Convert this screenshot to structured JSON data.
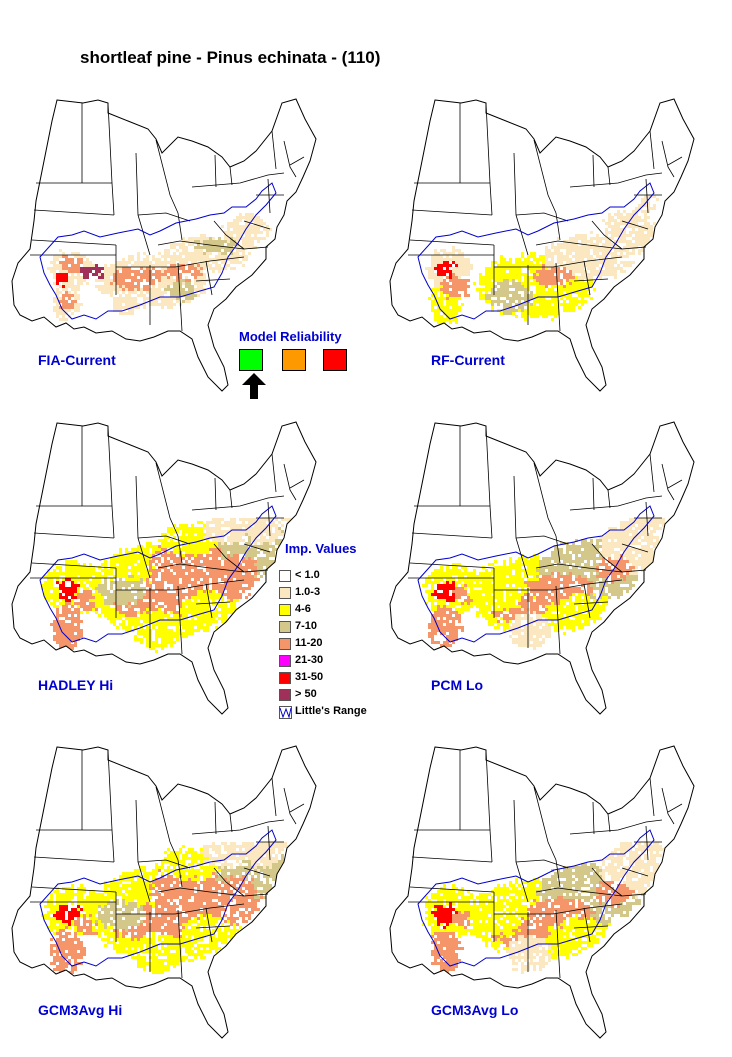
{
  "title": "shortleaf pine - Pinus echinata - (110)",
  "panels": [
    {
      "label": "FIA-Current",
      "intensity": 0
    },
    {
      "label": "RF-Current",
      "intensity": 1
    },
    {
      "label": "HADLEY Hi",
      "intensity": 3
    },
    {
      "label": "PCM Lo",
      "intensity": 2
    },
    {
      "label": "GCM3Avg Hi",
      "intensity": 3
    },
    {
      "label": "GCM3Avg Lo",
      "intensity": 2
    }
  ],
  "model_reliability": {
    "title": "Model Reliability",
    "levels": [
      {
        "color": "#00ff00",
        "selected": true
      },
      {
        "color": "#ff9900",
        "selected": false
      },
      {
        "color": "#ff0000",
        "selected": false
      }
    ]
  },
  "legend": {
    "title": "Imp. Values",
    "items": [
      {
        "label": "< 1.0",
        "color": "#ffffff"
      },
      {
        "label": "1.0-3",
        "color": "#fbe8c0"
      },
      {
        "label": "4-6",
        "color": "#ffff00"
      },
      {
        "label": "7-10",
        "color": "#d4c78a"
      },
      {
        "label": "11-20",
        "color": "#f4956a"
      },
      {
        "label": "21-30",
        "color": "#ff00ff"
      },
      {
        "label": "31-50",
        "color": "#ff0000"
      },
      {
        "label": "> 50",
        "color": "#a0305a"
      }
    ],
    "range_label": "Little's Range"
  },
  "colors": {
    "label_blue": "#0000d0",
    "range_line": "#0000cc"
  }
}
